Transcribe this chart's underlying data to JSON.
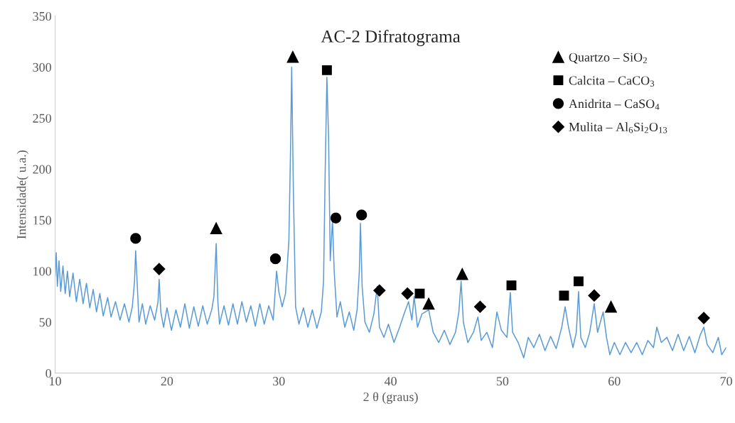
{
  "chart_data": {
    "type": "line",
    "title": "AC-2 Difratograma",
    "xlabel": "2 θ (graus)",
    "ylabel": "Intensidade( u.a.)",
    "xlim": [
      10,
      70
    ],
    "xticks": [
      10,
      20,
      30,
      40,
      50,
      60,
      70
    ],
    "ylim": [
      0,
      350
    ],
    "yticks": [
      0,
      50,
      100,
      150,
      200,
      250,
      300,
      350
    ],
    "grid": false,
    "legend": "top right",
    "series": [
      {
        "color": "#5b9bd5",
        "marker": "none",
        "x": [
          10.0,
          10.1,
          10.2,
          10.35,
          10.5,
          10.7,
          10.9,
          11.1,
          11.3,
          11.6,
          11.9,
          12.2,
          12.5,
          12.8,
          13.1,
          13.4,
          13.7,
          14.0,
          14.3,
          14.7,
          15.0,
          15.4,
          15.8,
          16.2,
          16.6,
          16.9,
          17.1,
          17.2,
          17.35,
          17.5,
          17.8,
          18.1,
          18.5,
          18.9,
          19.2,
          19.3,
          19.45,
          19.7,
          20.0,
          20.4,
          20.8,
          21.2,
          21.6,
          22.0,
          22.4,
          22.8,
          23.2,
          23.6,
          24.0,
          24.2,
          24.4,
          24.55,
          24.7,
          25.1,
          25.5,
          25.9,
          26.3,
          26.7,
          27.1,
          27.5,
          27.9,
          28.3,
          28.7,
          29.1,
          29.5,
          29.8,
          30.0,
          30.3,
          30.6,
          30.9,
          31.05,
          31.15,
          31.3,
          31.5,
          31.8,
          32.2,
          32.6,
          33.0,
          33.4,
          33.8,
          34.0,
          34.15,
          34.3,
          34.45,
          34.6,
          34.8,
          34.95,
          35.2,
          35.5,
          35.9,
          36.3,
          36.7,
          37.0,
          37.2,
          37.3,
          37.45,
          37.7,
          38.1,
          38.5,
          38.8,
          39.0,
          39.4,
          39.8,
          40.3,
          40.8,
          41.2,
          41.6,
          41.9,
          42.1,
          42.4,
          42.8,
          43.4,
          43.8,
          44.3,
          44.8,
          45.3,
          45.8,
          46.1,
          46.3,
          46.5,
          46.9,
          47.4,
          47.8,
          48.1,
          48.6,
          49.1,
          49.5,
          49.9,
          50.4,
          50.7,
          50.9,
          51.4,
          51.9,
          52.3,
          52.8,
          53.3,
          53.8,
          54.3,
          54.8,
          55.3,
          55.6,
          55.9,
          56.3,
          56.6,
          56.8,
          57.0,
          57.4,
          57.8,
          58.2,
          58.5,
          59.0,
          59.3,
          59.6,
          60.0,
          60.5,
          61.0,
          61.5,
          62.0,
          62.5,
          63.0,
          63.5,
          63.8,
          64.2,
          64.7,
          65.2,
          65.7,
          66.2,
          66.7,
          67.2,
          67.7,
          68.0,
          68.3,
          68.8,
          69.3,
          69.6,
          70.0
        ],
        "values": [
          95,
          118,
          85,
          110,
          80,
          105,
          78,
          100,
          75,
          98,
          70,
          92,
          68,
          88,
          64,
          82,
          60,
          78,
          56,
          74,
          55,
          70,
          52,
          68,
          50,
          65,
          90,
          120,
          85,
          50,
          68,
          48,
          66,
          52,
          70,
          92,
          60,
          45,
          64,
          42,
          62,
          45,
          68,
          44,
          65,
          46,
          66,
          48,
          62,
          75,
          127,
          70,
          48,
          66,
          47,
          68,
          48,
          70,
          50,
          66,
          46,
          68,
          48,
          66,
          52,
          100,
          80,
          65,
          78,
          130,
          220,
          300,
          180,
          65,
          48,
          64,
          45,
          62,
          44,
          60,
          90,
          200,
          290,
          230,
          110,
          150,
          100,
          55,
          70,
          45,
          60,
          42,
          62,
          100,
          147,
          85,
          50,
          40,
          58,
          85,
          45,
          35,
          48,
          30,
          45,
          58,
          70,
          52,
          75,
          45,
          58,
          62,
          40,
          30,
          42,
          28,
          40,
          60,
          90,
          50,
          30,
          40,
          55,
          32,
          40,
          25,
          60,
          42,
          35,
          79,
          40,
          30,
          15,
          35,
          25,
          38,
          22,
          36,
          24,
          45,
          65,
          45,
          25,
          40,
          80,
          35,
          25,
          40,
          68,
          40,
          60,
          35,
          18,
          30,
          18,
          30,
          20,
          30,
          18,
          32,
          25,
          45,
          30,
          35,
          22,
          38,
          22,
          36,
          20,
          38,
          45,
          28,
          20,
          35,
          18,
          25
        ]
      },
      {
        "type": "scatter",
        "name": "Quartzo – SiO$_{2}$",
        "color": "#000000",
        "marker": "triangle",
        "x": [
          24.4,
          31.25,
          43.4,
          46.4,
          59.7
        ],
        "values": [
          142,
          310,
          68,
          97,
          65
        ]
      },
      {
        "type": "scatter",
        "name": "Calcita – CaCO$_{3}$",
        "color": "#000000",
        "marker": "square",
        "x": [
          34.3,
          42.6,
          50.8,
          55.5,
          56.8
        ],
        "values": [
          297,
          78,
          86,
          76,
          90
        ]
      },
      {
        "type": "scatter",
        "name": "Anidrita – CaSO$_{4}$",
        "color": "#000000",
        "marker": "circle",
        "x": [
          17.2,
          29.7,
          35.1,
          37.4
        ],
        "values": [
          132,
          112,
          152,
          155
        ]
      },
      {
        "type": "scatter",
        "name": "Mulita – Al$_{6}$Si$_{2}$O$_{13}$",
        "color": "#000000",
        "marker": "diamond",
        "x": [
          19.3,
          39.0,
          41.5,
          48.0,
          58.2,
          68.0
        ],
        "values": [
          102,
          81,
          78,
          65,
          76,
          54
        ]
      }
    ]
  }
}
